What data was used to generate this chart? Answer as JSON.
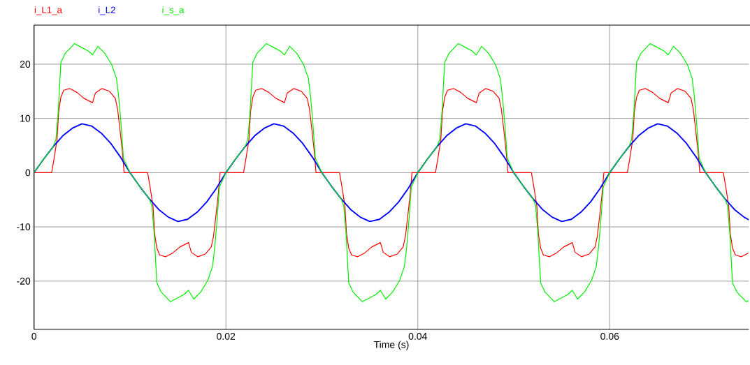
{
  "chart_data": {
    "type": "line",
    "xlabel": "Time (s)",
    "xlim": [
      0,
      0.0745
    ],
    "ylim": [
      -28.9,
      27.2
    ],
    "xticks": [
      0,
      0.02,
      0.04,
      0.06
    ],
    "yticks": [
      -20,
      -10,
      0,
      10,
      20
    ],
    "grid": true,
    "legend": "top left",
    "marker": "none",
    "line_style": "solid",
    "series": [
      {
        "name": "i_L1_a",
        "color": "#ff0000",
        "x": [
          0,
          0.00184,
          0.0021,
          0.0024,
          0.00257,
          0.0028,
          0.0031,
          0.00374,
          0.00447,
          0.0052,
          0.0061,
          0.0064,
          0.00706,
          0.00786,
          0.00847,
          0.00871,
          0.00896,
          0.0092,
          0.00939,
          0.01,
          0.01184,
          0.0121,
          0.0124,
          0.01257,
          0.0128,
          0.0131,
          0.01374,
          0.01447,
          0.0152,
          0.0161,
          0.0164,
          0.01706,
          0.01786,
          0.01847,
          0.01871,
          0.01896,
          0.0192,
          0.01939,
          0.02,
          0.02184,
          0.0221,
          0.0224,
          0.02257,
          0.0228,
          0.0231,
          0.02374,
          0.02447,
          0.0252,
          0.0261,
          0.0264,
          0.02706,
          0.02786,
          0.02847,
          0.02871,
          0.02896,
          0.0292,
          0.02939,
          0.03,
          0.03184,
          0.0321,
          0.0324,
          0.03257,
          0.0328,
          0.0331,
          0.03374,
          0.03447,
          0.0352,
          0.0361,
          0.0364,
          0.03706,
          0.03786,
          0.03847,
          0.03871,
          0.03896,
          0.0392,
          0.03939,
          0.04,
          0.04184,
          0.0421,
          0.0424,
          0.04257,
          0.0428,
          0.0431,
          0.04374,
          0.04447,
          0.0452,
          0.0461,
          0.0464,
          0.04706,
          0.04786,
          0.04847,
          0.04871,
          0.04896,
          0.0492,
          0.04939,
          0.05,
          0.05184,
          0.0521,
          0.0524,
          0.05257,
          0.0528,
          0.0531,
          0.05374,
          0.05447,
          0.0552,
          0.0561,
          0.0564,
          0.05706,
          0.05786,
          0.05847,
          0.05871,
          0.05896,
          0.0592,
          0.05939,
          0.06,
          0.06184,
          0.0621,
          0.0624,
          0.06257,
          0.0628,
          0.0631,
          0.06374,
          0.06447,
          0.0652,
          0.0661,
          0.0664,
          0.06706,
          0.06786,
          0.06847,
          0.06871,
          0.06896,
          0.0692,
          0.06939,
          0.07,
          0.07184,
          0.0721,
          0.0724,
          0.07257,
          0.0728,
          0.0731,
          0.07374,
          0.07447
        ],
        "values": [
          0,
          0,
          2.7,
          6.1,
          11.3,
          13.9,
          15.2,
          15.5,
          14.8,
          13.7,
          12.9,
          14.7,
          15.5,
          15,
          13.7,
          11.7,
          7.9,
          4,
          0,
          0,
          0,
          -2.7,
          -6.1,
          -11.3,
          -13.9,
          -15.2,
          -15.5,
          -14.8,
          -13.7,
          -12.9,
          -14.7,
          -15.5,
          -15,
          -13.7,
          -11.7,
          -7.9,
          -4,
          0,
          0,
          0,
          2.7,
          6.1,
          11.3,
          13.9,
          15.2,
          15.5,
          14.8,
          13.7,
          12.9,
          14.7,
          15.5,
          15,
          13.7,
          11.7,
          7.9,
          4,
          0,
          0,
          0,
          -2.7,
          -6.1,
          -11.3,
          -13.9,
          -15.2,
          -15.5,
          -14.8,
          -13.7,
          -12.9,
          -14.7,
          -15.5,
          -15,
          -13.7,
          -11.7,
          -7.9,
          -4,
          0,
          0,
          0,
          2.7,
          6.1,
          11.3,
          13.9,
          15.2,
          15.5,
          14.8,
          13.7,
          12.9,
          14.7,
          15.5,
          15,
          13.7,
          11.7,
          7.9,
          4,
          0,
          0,
          0,
          -2.7,
          -6.1,
          -11.3,
          -13.9,
          -15.2,
          -15.5,
          -14.8,
          -13.7,
          -12.9,
          -14.7,
          -15.5,
          -15,
          -13.7,
          -11.7,
          -7.9,
          -4,
          0,
          0,
          0,
          2.7,
          6.1,
          11.3,
          13.9,
          15.2,
          15.5,
          14.8,
          13.7,
          12.9,
          14.7,
          15.5,
          15,
          13.7,
          11.7,
          7.9,
          4,
          0,
          0,
          0,
          -2.7,
          -6.1,
          -11.3,
          -13.9,
          -15.2,
          -15.5,
          -14.8
        ]
      },
      {
        "name": "i_L2",
        "color": "#0000ff",
        "x": [
          0,
          0.001,
          0.002,
          0.003,
          0.004,
          0.005,
          0.006,
          0.007,
          0.008,
          0.009,
          0.01,
          0.011,
          0.012,
          0.013,
          0.014,
          0.015,
          0.016,
          0.017,
          0.018,
          0.019,
          0.02,
          0.021,
          0.022,
          0.023,
          0.024,
          0.025,
          0.026,
          0.027,
          0.028,
          0.029,
          0.03,
          0.031,
          0.032,
          0.033,
          0.034,
          0.035,
          0.036,
          0.037,
          0.038,
          0.039,
          0.04,
          0.041,
          0.042,
          0.043,
          0.044,
          0.045,
          0.046,
          0.047,
          0.048,
          0.049,
          0.05,
          0.051,
          0.052,
          0.053,
          0.054,
          0.055,
          0.056,
          0.057,
          0.058,
          0.059,
          0.06,
          0.061,
          0.062,
          0.063,
          0.064,
          0.065,
          0.066,
          0.067,
          0.068,
          0.069,
          0.07,
          0.071,
          0.072,
          0.073,
          0.074,
          0.0745
        ],
        "values": [
          0,
          2.5,
          4.8,
          6.8,
          8.2,
          9,
          8.6,
          7.3,
          5.4,
          2.9,
          0,
          -2.5,
          -4.8,
          -6.8,
          -8.2,
          -9,
          -8.6,
          -7.3,
          -5.4,
          -2.9,
          0,
          2.5,
          4.8,
          6.8,
          8.2,
          9,
          8.6,
          7.3,
          5.4,
          2.9,
          0,
          -2.5,
          -4.8,
          -6.8,
          -8.2,
          -9,
          -8.6,
          -7.3,
          -5.4,
          -2.9,
          0,
          2.5,
          4.8,
          6.8,
          8.2,
          9,
          8.6,
          7.3,
          5.4,
          2.9,
          0,
          -2.5,
          -4.8,
          -6.8,
          -8.2,
          -9,
          -8.6,
          -7.3,
          -5.4,
          -2.9,
          0,
          2.5,
          4.8,
          6.8,
          8.2,
          9,
          8.6,
          7.3,
          5.4,
          2.9,
          0,
          -2.5,
          -4.8,
          -6.8,
          -8.2,
          -8.7
        ]
      },
      {
        "name": "i_s_a",
        "color": "#00ee00",
        "x": [
          0,
          0.001,
          0.002,
          0.00228,
          0.00252,
          0.0028,
          0.00325,
          0.00422,
          0.00495,
          0.00568,
          0.0061,
          0.00665,
          0.00738,
          0.0081,
          0.0086,
          0.00883,
          0.00908,
          0.00932,
          0.01,
          0.011,
          0.012,
          0.01228,
          0.01252,
          0.0128,
          0.01325,
          0.01422,
          0.01495,
          0.01568,
          0.0161,
          0.01665,
          0.01738,
          0.0181,
          0.0186,
          0.01883,
          0.01908,
          0.01932,
          0.02,
          0.021,
          0.022,
          0.02228,
          0.02252,
          0.0228,
          0.02325,
          0.02422,
          0.02495,
          0.02568,
          0.0261,
          0.02665,
          0.02738,
          0.0281,
          0.0286,
          0.02883,
          0.02908,
          0.02932,
          0.03,
          0.031,
          0.032,
          0.03228,
          0.03252,
          0.0328,
          0.03325,
          0.03422,
          0.03495,
          0.03568,
          0.0361,
          0.03665,
          0.03738,
          0.0381,
          0.0386,
          0.03883,
          0.03908,
          0.03932,
          0.04,
          0.041,
          0.042,
          0.04228,
          0.04252,
          0.0428,
          0.04325,
          0.04422,
          0.04495,
          0.04568,
          0.0461,
          0.04665,
          0.04738,
          0.0481,
          0.0486,
          0.04883,
          0.04908,
          0.04932,
          0.05,
          0.051,
          0.052,
          0.05228,
          0.05252,
          0.0528,
          0.05325,
          0.05422,
          0.05495,
          0.05568,
          0.0561,
          0.05665,
          0.05738,
          0.0581,
          0.0586,
          0.05883,
          0.05908,
          0.05932,
          0.06,
          0.061,
          0.062,
          0.06228,
          0.06252,
          0.0628,
          0.06325,
          0.06422,
          0.06495,
          0.06568,
          0.0661,
          0.06665,
          0.06738,
          0.0681,
          0.0686,
          0.06883,
          0.06908,
          0.06932,
          0.07,
          0.071,
          0.072,
          0.07228,
          0.07252,
          0.0728,
          0.07325,
          0.07422,
          0.0745
        ],
        "values": [
          0,
          2.5,
          4.8,
          6.1,
          11.3,
          20.3,
          22,
          23.8,
          23.1,
          22.4,
          21.7,
          23.3,
          22,
          19.9,
          17.3,
          13.9,
          8.7,
          2.7,
          0,
          -2.5,
          -4.8,
          -6.1,
          -11.3,
          -20.3,
          -22,
          -23.8,
          -23.1,
          -22.4,
          -21.7,
          -23.3,
          -22,
          -19.9,
          -17.3,
          -13.9,
          -8.7,
          -2.7,
          0,
          2.5,
          4.8,
          6.1,
          11.3,
          20.3,
          22,
          23.8,
          23.1,
          22.4,
          21.7,
          23.3,
          22,
          19.9,
          17.3,
          13.9,
          8.7,
          2.7,
          0,
          -2.5,
          -4.8,
          -6.1,
          -11.3,
          -20.3,
          -22,
          -23.8,
          -23.1,
          -22.4,
          -21.7,
          -23.3,
          -22,
          -19.9,
          -17.3,
          -13.9,
          -8.7,
          -2.7,
          0,
          2.5,
          4.8,
          6.1,
          11.3,
          20.3,
          22,
          23.8,
          23.1,
          22.4,
          21.7,
          23.3,
          22,
          19.9,
          17.3,
          13.9,
          8.7,
          2.7,
          0,
          -2.5,
          -4.8,
          -6.1,
          -11.3,
          -20.3,
          -22,
          -23.8,
          -23.1,
          -22.4,
          -21.7,
          -23.3,
          -22,
          -19.9,
          -17.3,
          -13.9,
          -8.7,
          -2.7,
          0,
          2.5,
          4.8,
          6.1,
          11.3,
          20.3,
          22,
          23.8,
          23.1,
          22.4,
          21.7,
          23.3,
          22,
          19.9,
          17.3,
          13.9,
          8.7,
          2.7,
          0,
          -2.5,
          -4.8,
          -6.1,
          -11.3,
          -20.3,
          -22,
          -23.8,
          -23.6
        ]
      }
    ]
  }
}
